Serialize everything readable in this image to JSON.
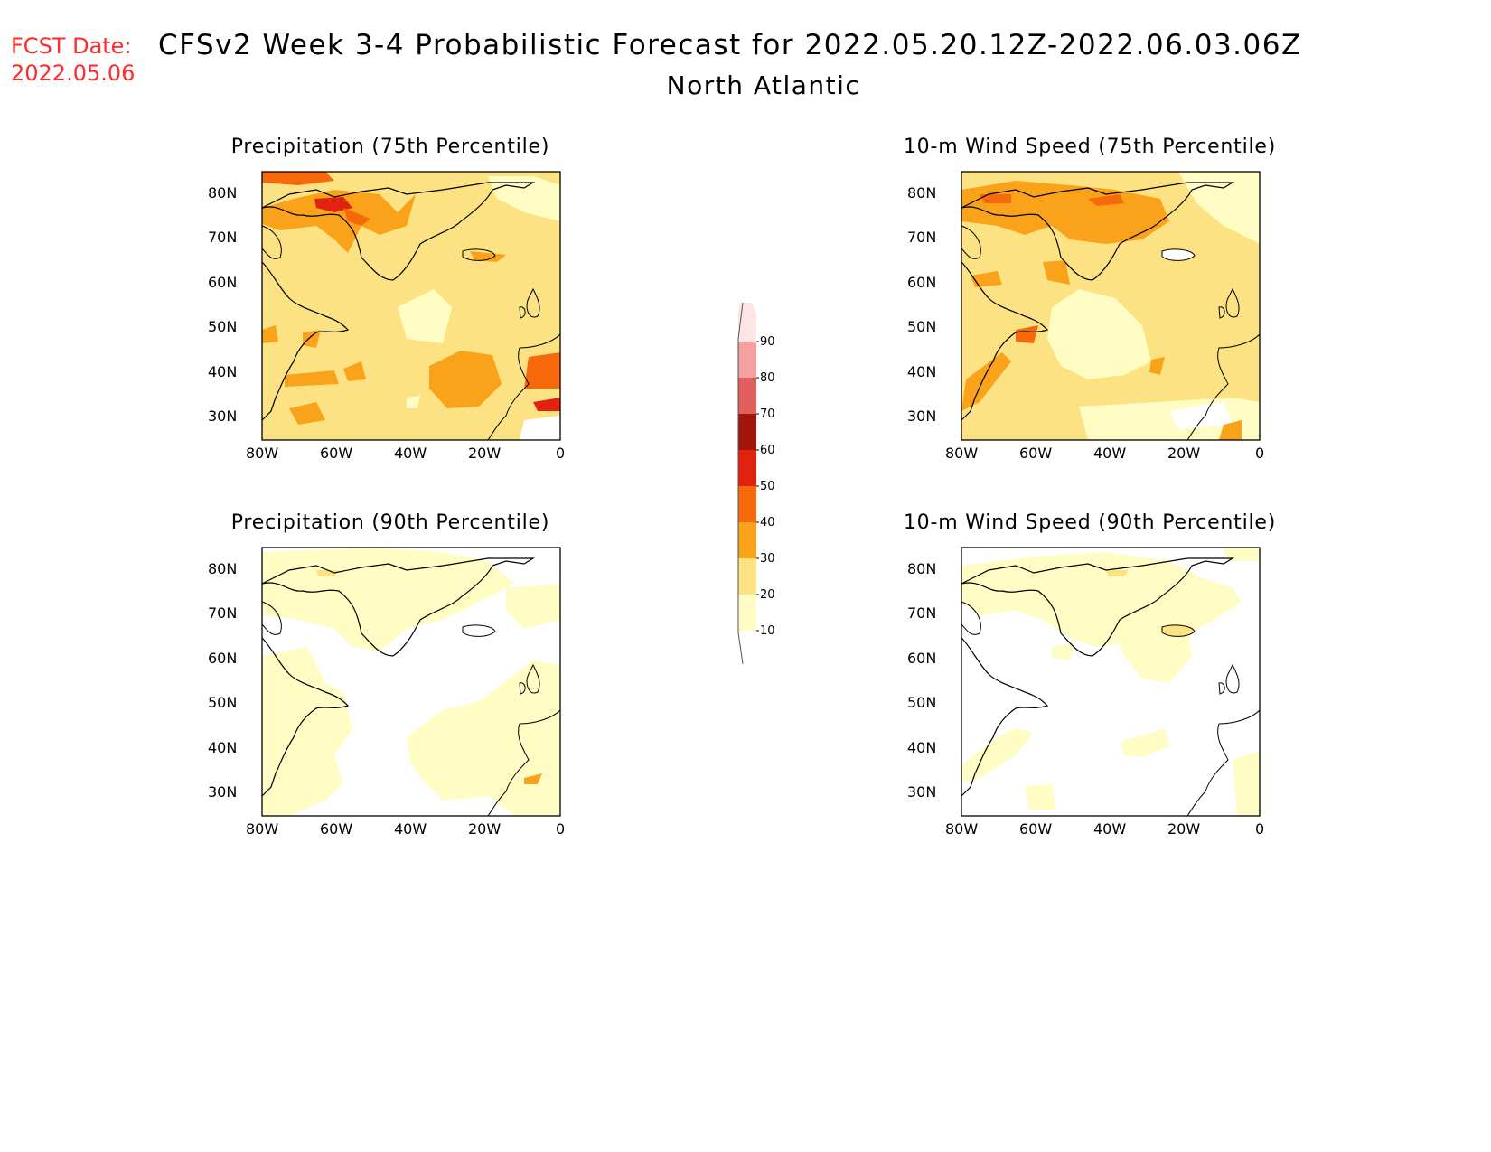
{
  "header": {
    "fcst_label": "FCST Date:",
    "fcst_date": "2022.05.06",
    "title": "CFSv2 Week 3-4 Probabilistic Forecast for 2022.05.20.12Z-2022.06.03.06Z",
    "subtitle": "North Atlantic"
  },
  "panels": [
    {
      "id": "precip-75",
      "title": "Precipitation (75th Percentile)"
    },
    {
      "id": "wind-75",
      "title": "10-m Wind Speed (75th Percentile)"
    },
    {
      "id": "precip-90",
      "title": "Precipitation (90th Percentile)"
    },
    {
      "id": "wind-90",
      "title": "10-m Wind Speed (90th Percentile)"
    }
  ],
  "axes": {
    "lat_ticks": [
      "80N",
      "70N",
      "60N",
      "50N",
      "40N",
      "30N"
    ],
    "lon_ticks": [
      "80W",
      "60W",
      "40W",
      "20W",
      "0"
    ]
  },
  "colorbar": {
    "levels": [
      "10",
      "20",
      "30",
      "40",
      "50",
      "60",
      "70",
      "80",
      "90"
    ],
    "colors": [
      "#fffcc4",
      "#fce283",
      "#f9a21a",
      "#f76a0c",
      "#e2210e",
      "#a2150a",
      "#e06060",
      "#f4a1a1",
      "#fde5e5"
    ]
  },
  "colors": {
    "fcst_label": "#ff2a2a"
  }
}
